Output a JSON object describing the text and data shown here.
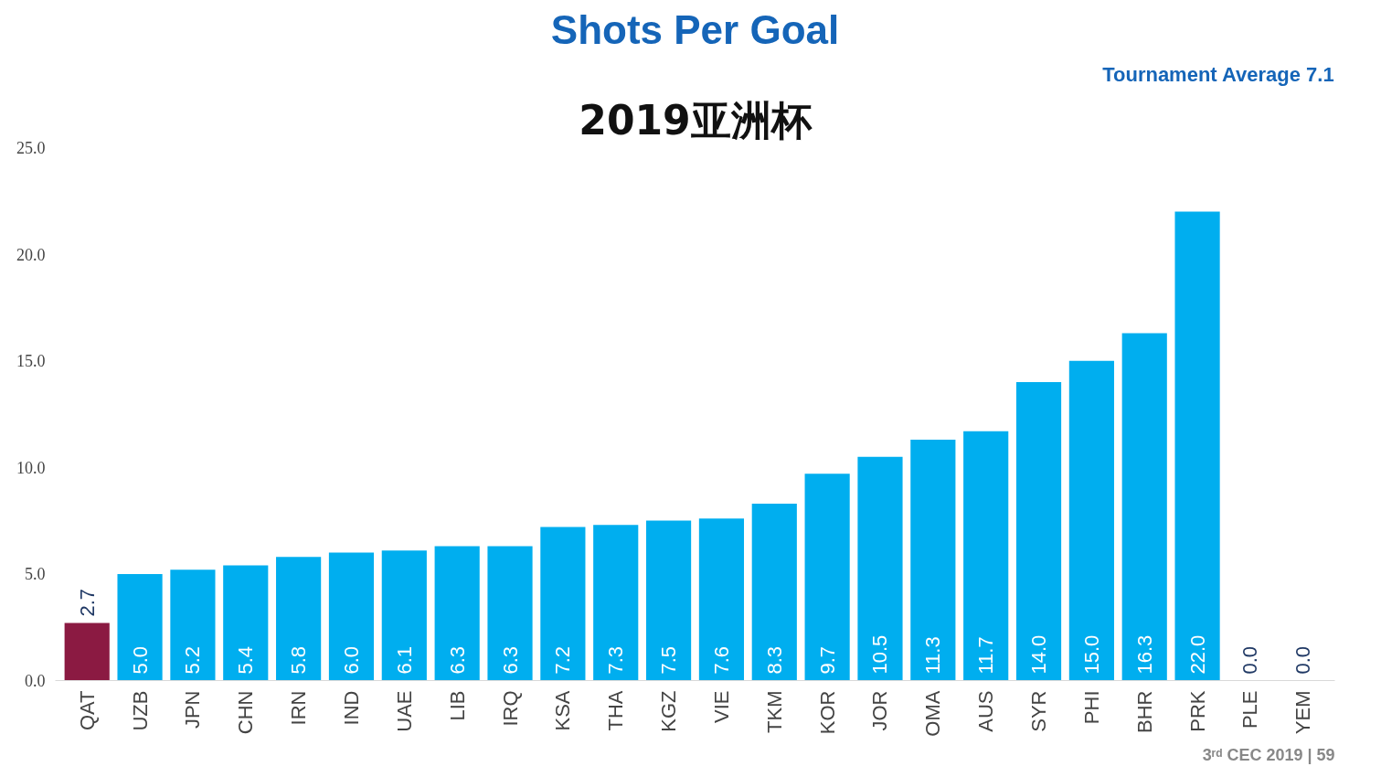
{
  "chart_data": {
    "type": "bar",
    "title": "Shots Per Goal",
    "subtitle": "2019亚洲杯",
    "annotations": [
      "Tournament Average 7.1",
      "3ʳᵈ CEC 2019 | 59"
    ],
    "categories": [
      "QAT",
      "UZB",
      "JPN",
      "CHN",
      "IRN",
      "IND",
      "UAE",
      "LIB",
      "IRQ",
      "KSA",
      "THA",
      "KGZ",
      "VIE",
      "TKM",
      "KOR",
      "JOR",
      "OMA",
      "AUS",
      "SYR",
      "PHI",
      "BHR",
      "PRK",
      "PLE",
      "YEM"
    ],
    "values": [
      2.7,
      5.0,
      5.2,
      5.4,
      5.8,
      6.0,
      6.1,
      6.3,
      6.3,
      7.2,
      7.3,
      7.5,
      7.6,
      8.3,
      9.7,
      10.5,
      11.3,
      11.7,
      14.0,
      15.0,
      16.3,
      22.0,
      0.0,
      0.0
    ],
    "colors": [
      "#8b1a42",
      "#00aeef",
      "#00aeef",
      "#00aeef",
      "#00aeef",
      "#00aeef",
      "#00aeef",
      "#00aeef",
      "#00aeef",
      "#00aeef",
      "#00aeef",
      "#00aeef",
      "#00aeef",
      "#00aeef",
      "#00aeef",
      "#00aeef",
      "#00aeef",
      "#00aeef",
      "#00aeef",
      "#00aeef",
      "#00aeef",
      "#00aeef",
      "#00aeef",
      "#00aeef"
    ],
    "ylim": [
      0,
      25
    ],
    "yticks": [
      {
        "value": 0,
        "label": "0.0"
      },
      {
        "value": 5,
        "label": "5.0"
      },
      {
        "value": 10,
        "label": "10.0"
      },
      {
        "value": 15,
        "label": "15.0"
      },
      {
        "value": 20,
        "label": "20.0"
      },
      {
        "value": 25,
        "label": "25.0"
      }
    ],
    "value_labels": [
      "2.7",
      "5.0",
      "5.2",
      "5.4",
      "5.8",
      "6.0",
      "6.1",
      "6.3",
      "6.3",
      "7.2",
      "7.3",
      "7.5",
      "7.6",
      "8.3",
      "9.7",
      "10.5",
      "11.3",
      "11.7",
      "14.0",
      "15.0",
      "16.3",
      "22.0",
      "0.0",
      "0.0"
    ],
    "grid": false
  }
}
